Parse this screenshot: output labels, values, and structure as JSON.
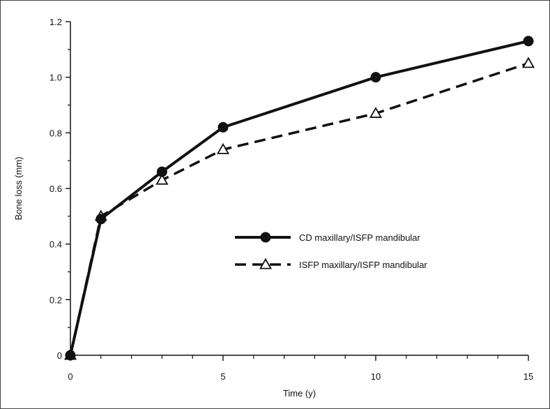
{
  "chart_data": {
    "type": "line",
    "title": "",
    "xlabel": "Time (y)",
    "ylabel": "Bone loss (mm)",
    "xlim": [
      0,
      15
    ],
    "ylim": [
      0,
      1.2
    ],
    "x_major_ticks": [
      0,
      5,
      10,
      15
    ],
    "x_major_tick_labels": [
      "0",
      "5",
      "10",
      "15"
    ],
    "x_minor_ticks": [
      1,
      2,
      3,
      4,
      6,
      7,
      8,
      9,
      11,
      12,
      13,
      14
    ],
    "y_major_ticks": [
      0,
      0.2,
      0.4,
      0.6,
      0.8,
      1.0,
      1.2
    ],
    "y_major_tick_labels": [
      "0",
      "0.2",
      "0.4",
      "0.6",
      "0.8",
      "1.0",
      "1.2"
    ],
    "y_minor_ticks": [
      0.1,
      0.3,
      0.5,
      0.7,
      0.9,
      1.1
    ],
    "grid": false,
    "legend_position": "center-right",
    "series": [
      {
        "name": "CD maxillary/ISFP mandibular",
        "line_style": "solid",
        "marker": "filled-circle",
        "color": "#111111",
        "x": [
          0,
          1,
          3,
          5,
          10,
          15
        ],
        "y": [
          0,
          0.49,
          0.66,
          0.82,
          1.0,
          1.13
        ]
      },
      {
        "name": "ISFP maxillary/ISFP mandibular",
        "line_style": "dashed",
        "marker": "open-triangle",
        "color": "#111111",
        "x": [
          0,
          1,
          3,
          5,
          10,
          15
        ],
        "y": [
          0,
          0.5,
          0.63,
          0.74,
          0.87,
          1.05
        ]
      }
    ]
  }
}
